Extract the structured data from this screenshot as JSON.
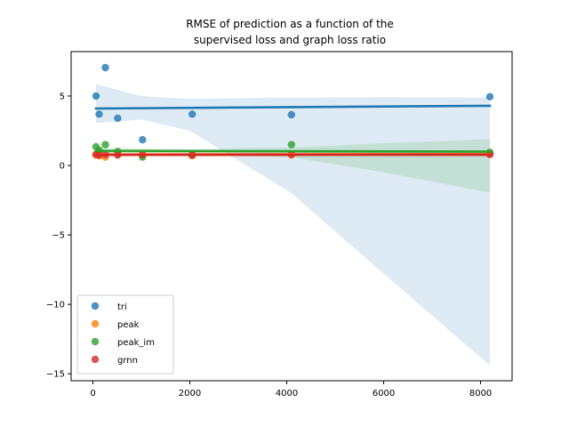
{
  "chart_data": {
    "type": "scatter",
    "title_lines": [
      "RMSE of prediction as a function of the",
      "supervised loss and graph loss ratio"
    ],
    "xlabel": "",
    "ylabel": "",
    "xlim": [
      -450,
      8650
    ],
    "ylim": [
      -15.5,
      8.2
    ],
    "x_ticks": [
      0,
      2000,
      4000,
      6000,
      8000
    ],
    "y_ticks": [
      -15,
      -10,
      -5,
      0,
      5
    ],
    "grid": false,
    "legend_position": "lower-left",
    "series": [
      {
        "name": "tri",
        "color": "#1f77b4",
        "points": [
          [
            64,
            5.0
          ],
          [
            128,
            3.7
          ],
          [
            256,
            7.05
          ],
          [
            512,
            3.4
          ],
          [
            1024,
            1.85
          ],
          [
            2048,
            3.7
          ],
          [
            4096,
            3.65
          ],
          [
            8192,
            4.95
          ]
        ],
        "fit": [
          [
            64,
            4.1
          ],
          [
            8192,
            4.3
          ]
        ],
        "band_upper": [
          [
            64,
            5.85
          ],
          [
            1000,
            5.0
          ],
          [
            2000,
            4.8
          ],
          [
            4096,
            4.9
          ],
          [
            6000,
            4.92
          ],
          [
            8192,
            4.9
          ]
        ],
        "band_lower": [
          [
            64,
            3.05
          ],
          [
            1000,
            3.3
          ],
          [
            2000,
            2.5
          ],
          [
            4096,
            -2.0
          ],
          [
            6000,
            -7.8
          ],
          [
            8192,
            -14.4
          ]
        ]
      },
      {
        "name": "peak",
        "color": "#ff7f0e",
        "points": [
          [
            64,
            0.75
          ],
          [
            128,
            0.7
          ],
          [
            256,
            0.6
          ],
          [
            512,
            0.8
          ],
          [
            1024,
            0.75
          ],
          [
            2048,
            0.7
          ],
          [
            4096,
            0.75
          ],
          [
            8192,
            0.8
          ]
        ],
        "fit": [
          [
            64,
            0.78
          ],
          [
            8192,
            0.82
          ]
        ],
        "band_upper": [
          [
            64,
            0.95
          ],
          [
            8192,
            1.0
          ]
        ],
        "band_lower": [
          [
            64,
            0.6
          ],
          [
            8192,
            0.62
          ]
        ]
      },
      {
        "name": "peak_im",
        "color": "#2ca02c",
        "points": [
          [
            64,
            1.35
          ],
          [
            128,
            1.1
          ],
          [
            256,
            1.5
          ],
          [
            512,
            1.0
          ],
          [
            1024,
            0.6
          ],
          [
            2048,
            0.8
          ],
          [
            4096,
            1.5
          ],
          [
            8192,
            0.95
          ]
        ],
        "fit": [
          [
            64,
            1.05
          ],
          [
            8192,
            1.0
          ]
        ],
        "band_upper": [
          [
            64,
            1.35
          ],
          [
            1000,
            1.25
          ],
          [
            2000,
            1.2
          ],
          [
            4096,
            1.3
          ],
          [
            6000,
            1.6
          ],
          [
            8192,
            1.9
          ]
        ],
        "band_lower": [
          [
            64,
            0.75
          ],
          [
            1000,
            0.85
          ],
          [
            2000,
            0.8
          ],
          [
            4096,
            0.6
          ],
          [
            6000,
            -0.5
          ],
          [
            8192,
            -1.95
          ]
        ]
      },
      {
        "name": "grnn",
        "color": "#d62728",
        "points": [
          [
            64,
            0.8
          ],
          [
            128,
            0.75
          ],
          [
            256,
            0.8
          ],
          [
            512,
            0.75
          ],
          [
            1024,
            0.8
          ],
          [
            2048,
            0.75
          ],
          [
            4096,
            0.8
          ],
          [
            8192,
            0.8
          ]
        ],
        "fit": [
          [
            64,
            0.77
          ],
          [
            8192,
            0.78
          ]
        ],
        "band_upper": [
          [
            64,
            0.88
          ],
          [
            8192,
            0.95
          ]
        ],
        "band_lower": [
          [
            64,
            0.68
          ],
          [
            8192,
            0.62
          ]
        ]
      }
    ]
  }
}
